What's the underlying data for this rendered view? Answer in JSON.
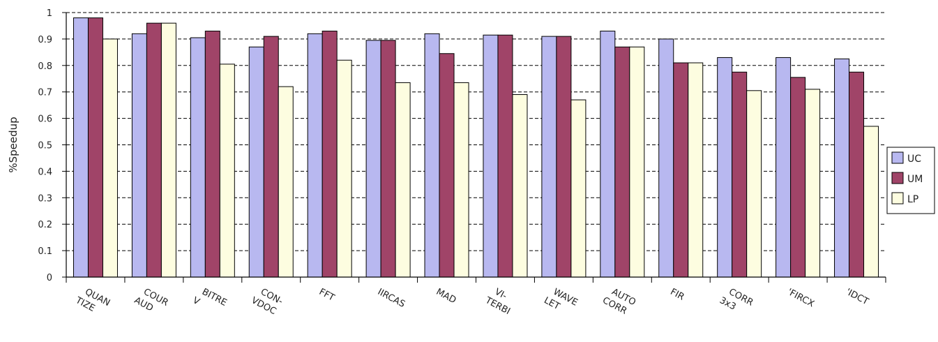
{
  "chart_data": {
    "type": "bar",
    "title": "",
    "xlabel": "",
    "ylabel": "%Speedup",
    "ylim": [
      0,
      1
    ],
    "yticks": [
      "0",
      "0.1",
      "0.2",
      "0.3",
      "0.4",
      "0.5",
      "0.6",
      "0.7",
      "0.8",
      "0.9",
      "1"
    ],
    "grid": "horizontal dashed",
    "legend_position": "right",
    "categories": [
      [
        "QUAN",
        "TIZE"
      ],
      [
        "COUR",
        "AUD"
      ],
      [
        "BITRE",
        "V"
      ],
      [
        "CON-",
        "VDOC"
      ],
      [
        "FFT"
      ],
      [
        "IIRCAS"
      ],
      [
        "MAD"
      ],
      [
        "VI-",
        "TERBI"
      ],
      [
        "WAVE",
        "LET"
      ],
      [
        "AUTO",
        "CORR"
      ],
      [
        "FIR"
      ],
      [
        "CORR",
        "3x3"
      ],
      [
        "'FIRCX"
      ],
      [
        "'IDCT"
      ]
    ],
    "series": [
      {
        "name": "UC",
        "color": "#b8b8f0",
        "values": [
          0.98,
          0.92,
          0.905,
          0.87,
          0.92,
          0.895,
          0.92,
          0.915,
          0.91,
          0.93,
          0.9,
          0.83,
          0.83,
          0.825
        ]
      },
      {
        "name": "UM",
        "color": "#a04468",
        "values": [
          0.98,
          0.96,
          0.93,
          0.91,
          0.93,
          0.895,
          0.845,
          0.915,
          0.91,
          0.87,
          0.81,
          0.775,
          0.755,
          0.775
        ]
      },
      {
        "name": "LP",
        "color": "#fdfde0",
        "values": [
          0.9,
          0.96,
          0.805,
          0.72,
          0.82,
          0.735,
          0.735,
          0.69,
          0.67,
          0.87,
          0.81,
          0.705,
          0.71,
          0.57
        ]
      }
    ]
  }
}
